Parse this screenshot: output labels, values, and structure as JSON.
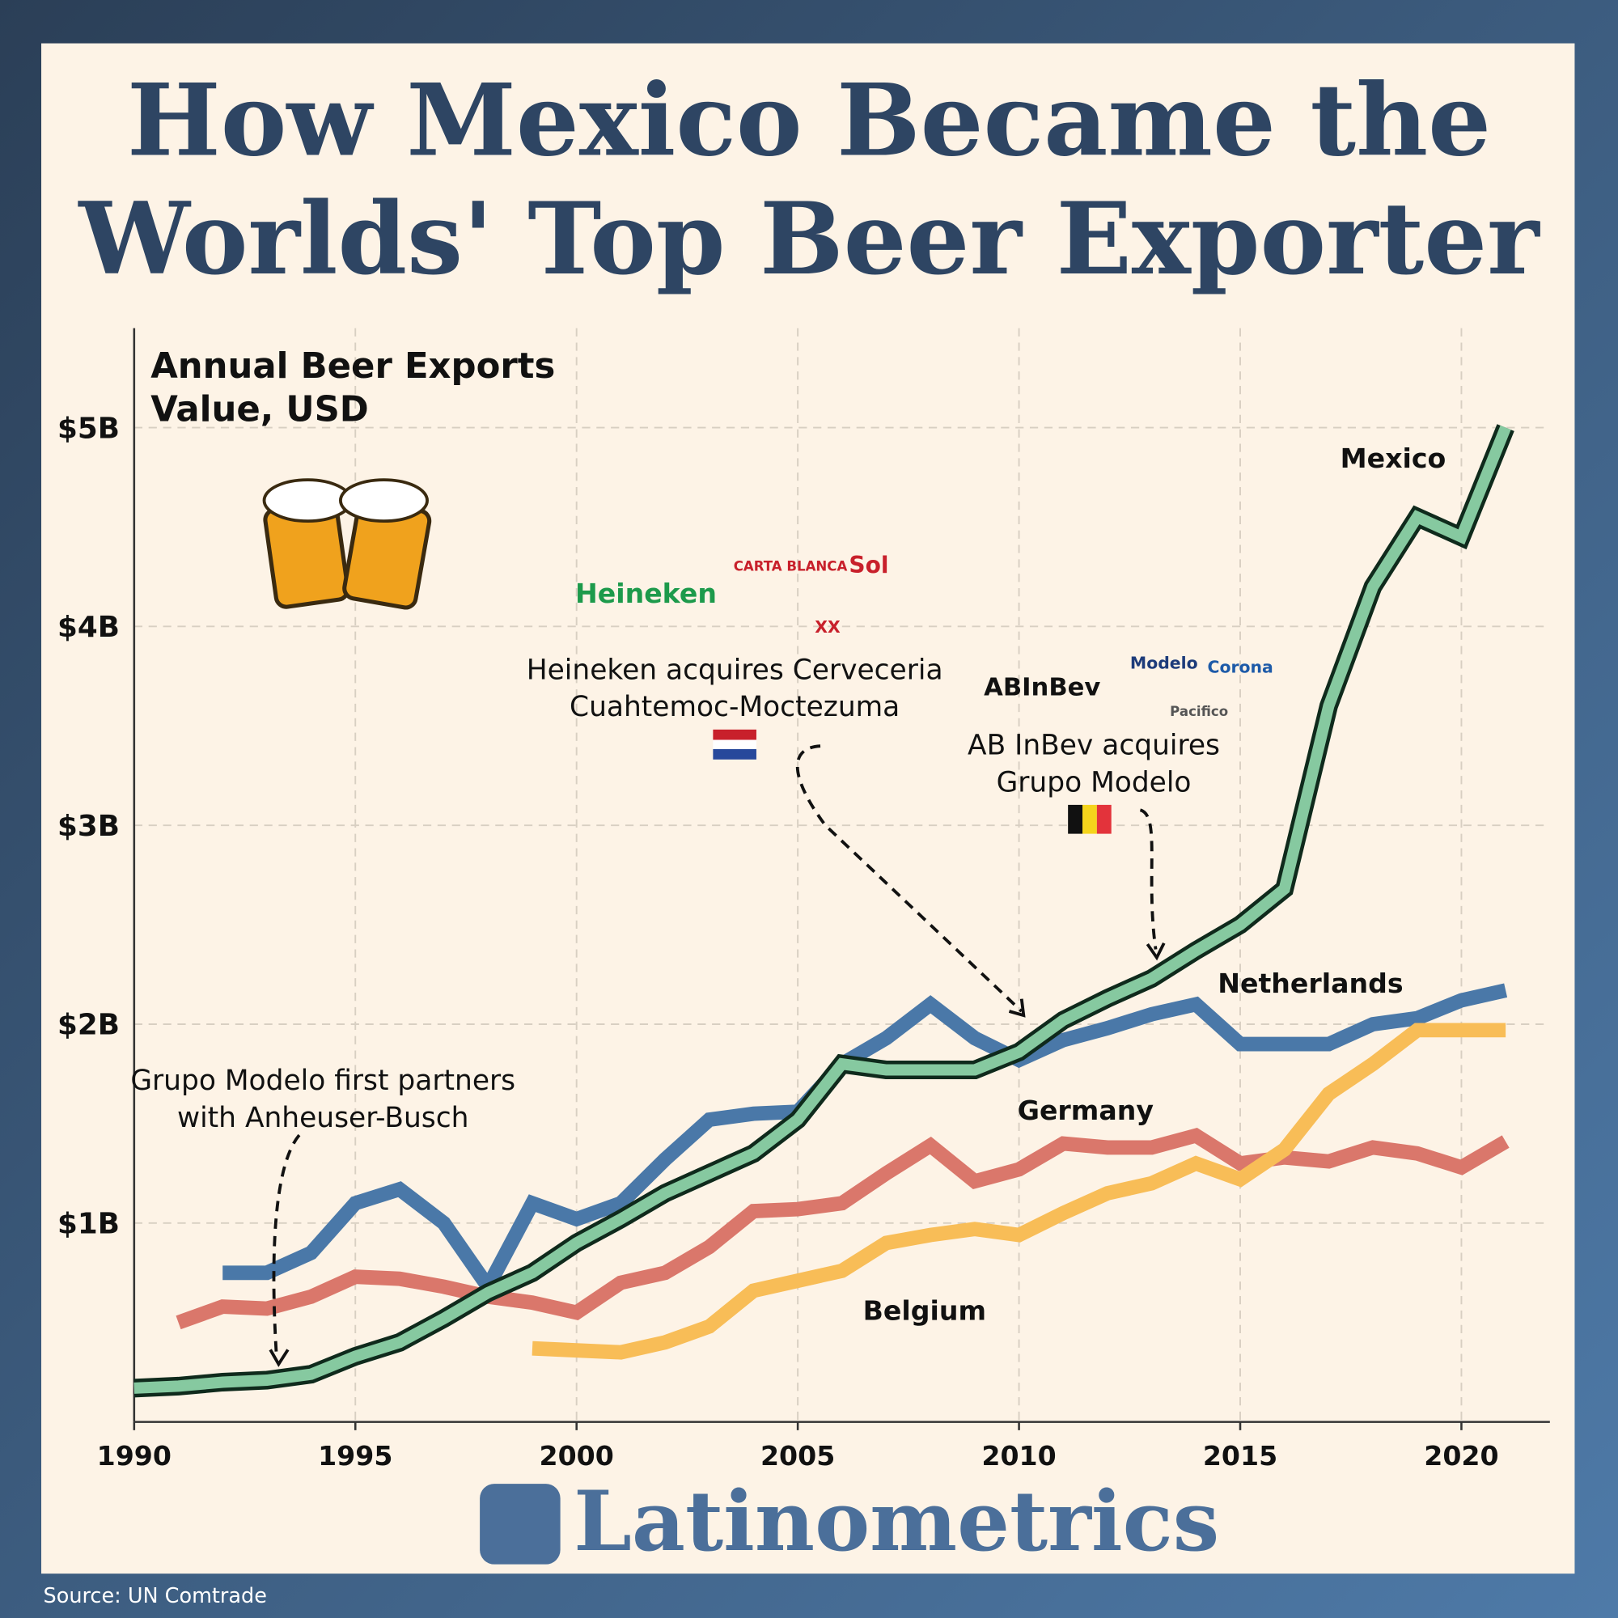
{
  "chart_data": {
    "type": "line",
    "title_lines": [
      "How Mexico Became the",
      "Worlds' Top Beer Exporter"
    ],
    "y_axis_title_lines": [
      "Annual Beer Exports",
      "Value, USD"
    ],
    "x": [
      1990,
      1991,
      1992,
      1993,
      1994,
      1995,
      1996,
      1997,
      1998,
      1999,
      2000,
      2001,
      2002,
      2003,
      2004,
      2005,
      2006,
      2007,
      2008,
      2009,
      2010,
      2011,
      2012,
      2013,
      2014,
      2015,
      2016,
      2017,
      2018,
      2019,
      2020,
      2021
    ],
    "series": [
      {
        "name": "Netherlands",
        "color": "#4a78a8",
        "values": [
          null,
          null,
          0.75,
          0.75,
          0.85,
          1.1,
          1.17,
          1.0,
          0.68,
          1.1,
          1.02,
          1.1,
          1.32,
          1.52,
          1.55,
          1.56,
          1.8,
          1.93,
          2.1,
          1.93,
          1.82,
          1.92,
          1.98,
          2.05,
          2.1,
          1.9,
          1.9,
          1.9,
          2.0,
          2.03,
          2.12,
          2.17
        ]
      },
      {
        "name": "Germany",
        "color": "#da776b",
        "values": [
          null,
          0.5,
          0.58,
          0.57,
          0.63,
          0.73,
          0.72,
          0.68,
          0.63,
          0.6,
          0.55,
          0.7,
          0.75,
          0.88,
          1.06,
          1.07,
          1.1,
          1.25,
          1.39,
          1.21,
          1.27,
          1.4,
          1.38,
          1.38,
          1.44,
          1.3,
          1.33,
          1.31,
          1.38,
          1.35,
          1.28,
          1.41
        ]
      },
      {
        "name": "Belgium",
        "color": "#f8bd57",
        "values": [
          null,
          null,
          null,
          null,
          null,
          null,
          null,
          null,
          null,
          0.37,
          0.36,
          0.35,
          0.4,
          0.48,
          0.66,
          0.71,
          0.76,
          0.9,
          0.94,
          0.97,
          0.94,
          1.05,
          1.15,
          1.2,
          1.3,
          1.22,
          1.37,
          1.65,
          1.8,
          1.97,
          1.97,
          1.97
        ]
      },
      {
        "name": "Mexico",
        "color": "#86c9a0",
        "outline": "#0f2a1c",
        "values": [
          0.17,
          0.18,
          0.2,
          0.21,
          0.24,
          0.33,
          0.4,
          0.52,
          0.65,
          0.75,
          0.9,
          1.02,
          1.15,
          1.25,
          1.35,
          1.52,
          1.8,
          1.77,
          1.77,
          1.77,
          1.86,
          2.02,
          2.13,
          2.23,
          2.37,
          2.5,
          2.68,
          3.6,
          4.2,
          4.55,
          4.45,
          5.0
        ]
      }
    ],
    "xlim": [
      1990,
      2022
    ],
    "ylim": [
      0,
      5.5
    ],
    "xticks": [
      1990,
      1995,
      2000,
      2005,
      2010,
      2015,
      2020
    ],
    "yticks": [
      {
        "value": 1,
        "label": "$1B"
      },
      {
        "value": 2,
        "label": "$2B"
      },
      {
        "value": 3,
        "label": "$3B"
      },
      {
        "value": 4,
        "label": "$4B"
      },
      {
        "value": 5,
        "label": "$5B"
      }
    ],
    "grid": true,
    "annotations": [
      {
        "lines": [
          "Heineken acquires Cerveceria",
          "Cuahtemoc-Moctezuma"
        ]
      },
      {
        "lines": [
          "AB InBev acquires",
          "Grupo Modelo"
        ]
      },
      {
        "lines": [
          "Grupo Modelo first partners",
          "with Anheuser-Busch"
        ]
      }
    ],
    "logos": [
      "Heineken",
      "CARTA BLANCA",
      "Sol",
      "XX",
      "ABInBev",
      "Modelo",
      "Corona",
      "Pacifico"
    ],
    "brand": "Latinometrics",
    "source": "Source: UN Comtrade"
  }
}
